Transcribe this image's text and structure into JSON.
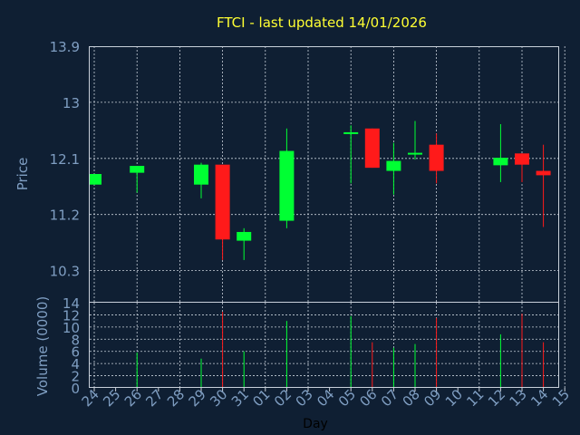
{
  "chart_data": {
    "type": "candlestick",
    "title": "FTCI - last updated 14/01/2026",
    "xlabel": "Day",
    "price_panel": {
      "ylabel": "Price",
      "ylim": [
        9.8,
        13.9
      ],
      "yticks": [
        10.3,
        11.2,
        12.1,
        13,
        13.9
      ],
      "grid": true
    },
    "volume_panel": {
      "ylabel": "Volume (0000)",
      "ylim": [
        0,
        14
      ],
      "yticks": [
        0,
        2,
        4,
        6,
        8,
        10,
        12,
        14
      ],
      "grid": true
    },
    "x_ticks": [
      "24",
      "25",
      "26",
      "27",
      "28",
      "29",
      "30",
      "31",
      "01",
      "02",
      "03",
      "04",
      "05",
      "06",
      "07",
      "08",
      "09",
      "10",
      "11",
      "12",
      "13",
      "14",
      "15"
    ],
    "up_color": "#00ff33",
    "down_color": "#ff1a1a",
    "candles": [
      {
        "day": "24",
        "open": 11.68,
        "close": 11.85,
        "high": 11.85,
        "low": 11.68,
        "volume": 0,
        "direction": "up"
      },
      {
        "day": "26",
        "open": 11.87,
        "close": 11.98,
        "high": 11.98,
        "low": 11.55,
        "volume": 5.8,
        "direction": "up"
      },
      {
        "day": "29",
        "open": 11.68,
        "close": 12.0,
        "high": 12.03,
        "low": 11.46,
        "volume": 4.8,
        "direction": "up"
      },
      {
        "day": "30",
        "open": 12.0,
        "close": 10.8,
        "high": 12.0,
        "low": 10.47,
        "volume": 12.5,
        "direction": "down"
      },
      {
        "day": "31",
        "open": 10.78,
        "close": 10.92,
        "high": 10.98,
        "low": 10.47,
        "volume": 6.0,
        "direction": "up"
      },
      {
        "day": "02",
        "open": 11.1,
        "close": 12.22,
        "high": 12.58,
        "low": 10.98,
        "volume": 11.0,
        "direction": "up"
      },
      {
        "day": "05",
        "open": 12.49,
        "close": 12.52,
        "high": 12.63,
        "low": 11.7,
        "volume": 11.8,
        "direction": "up"
      },
      {
        "day": "06",
        "open": 12.58,
        "close": 11.95,
        "high": 12.58,
        "low": 11.95,
        "volume": 7.5,
        "direction": "down"
      },
      {
        "day": "07",
        "open": 11.9,
        "close": 12.06,
        "high": 12.35,
        "low": 11.52,
        "volume": 6.6,
        "direction": "up"
      },
      {
        "day": "08",
        "open": 12.17,
        "close": 12.19,
        "high": 12.7,
        "low": 12.08,
        "volume": 7.2,
        "direction": "up"
      },
      {
        "day": "09",
        "open": 12.32,
        "close": 11.9,
        "high": 12.5,
        "low": 11.7,
        "volume": 11.5,
        "direction": "down"
      },
      {
        "day": "12",
        "open": 11.99,
        "close": 12.11,
        "high": 12.65,
        "low": 11.72,
        "volume": 8.8,
        "direction": "up"
      },
      {
        "day": "13",
        "open": 12.18,
        "close": 12.0,
        "high": 12.18,
        "low": 11.72,
        "volume": 12.2,
        "direction": "down"
      },
      {
        "day": "14",
        "open": 11.9,
        "close": 11.83,
        "high": 12.32,
        "low": 11.0,
        "volume": 7.5,
        "direction": "down"
      }
    ]
  }
}
